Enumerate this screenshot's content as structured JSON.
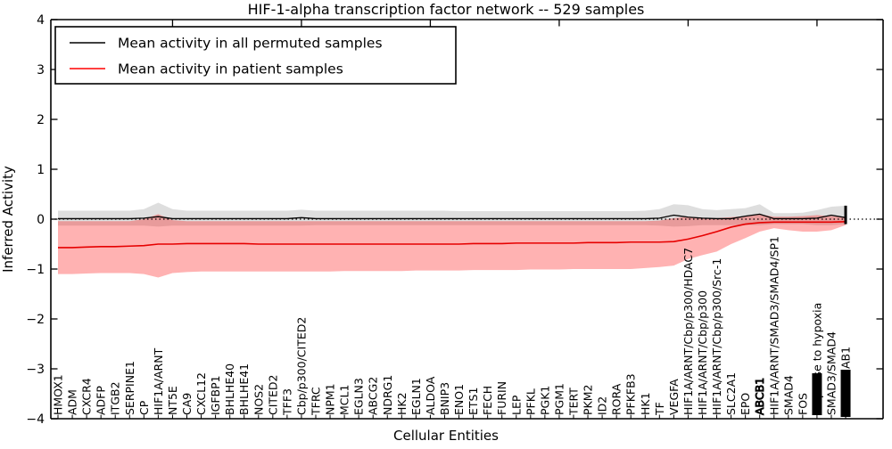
{
  "title": "HIF-1-alpha transcription factor network -- 529 samples",
  "axes": {
    "ylabel": "Inferred Activity",
    "xlabel": "Cellular Entities",
    "ylim": [
      -4,
      4
    ],
    "yticks": [
      4,
      3,
      2,
      1,
      0,
      -1,
      -2,
      -3,
      -4
    ]
  },
  "legend": {
    "items": [
      {
        "label": "Mean activity in all permuted samples",
        "color": "#000000"
      },
      {
        "label": "Mean activity in patient samples",
        "color": "#ff0000"
      }
    ]
  },
  "chart_data": {
    "type": "line",
    "title": "HIF-1-alpha transcription factor network -- 529 samples",
    "xlabel": "Cellular Entities",
    "ylabel": "Inferred Activity",
    "ylim": [
      -4,
      4
    ],
    "grid": false,
    "legend_position": "upper left",
    "zero_line": {
      "y": 0,
      "style": "dotted"
    },
    "categories": [
      "HMOX1",
      "ADM",
      "CXCR4",
      "ADFP",
      "ITGB2",
      "SERPINE1",
      "CP",
      "HIF1A/ARNT",
      "NT5E",
      "CA9",
      "CXCL12",
      "IGFBP1",
      "BHLHE40",
      "BHLHE41",
      "NOS2",
      "CITED2",
      "TFF3",
      "Cbp/p300/CITED2",
      "TFRC",
      "NPM1",
      "MCL1",
      "EGLN3",
      "ABCG2",
      "NDRG1",
      "HK2",
      "EGLN1",
      "ALDOA",
      "BNIP3",
      "ENO1",
      "ETS1",
      "FECH",
      "FURIN",
      "LEP",
      "PFKL",
      "PGK1",
      "PGM1",
      "TERT",
      "PKM2",
      "ID2",
      "RORA",
      "PFKFB3",
      "HK1",
      "TF",
      "VEGFA",
      "HIF1A/ARNT/Cbp/p300/HDAC7",
      "HIF1A/ARNT/Cbp/p300",
      "HIF1A/ARNT/Cbp/p300/Src-1",
      "SLC2A1",
      "EPO",
      "ABCB1",
      "HIF1A/ARNT/SMAD3/SMAD4/SP1",
      "SMAD4",
      "FOS",
      "response to hypoxia",
      "SMAD3/SMAD4",
      "AB1"
    ],
    "series": [
      {
        "name": "Mean activity in all permuted samples",
        "color": "#000000",
        "values": [
          0.01,
          0.01,
          0.01,
          0.01,
          0.01,
          0.01,
          0.02,
          0.05,
          0.01,
          0.01,
          0.01,
          0.01,
          0.01,
          0.01,
          0.01,
          0.01,
          0.01,
          0.03,
          0.01,
          0.01,
          0.01,
          0.01,
          0.01,
          0.01,
          0.01,
          0.01,
          0.01,
          0.01,
          0.01,
          0.01,
          0.01,
          0.01,
          0.01,
          0.01,
          0.01,
          0.01,
          0.01,
          0.01,
          0.01,
          0.01,
          0.01,
          0.01,
          0.02,
          0.08,
          0.04,
          0.02,
          0.01,
          0.01,
          0.06,
          0.1,
          0.01,
          0.01,
          0.01,
          0.02,
          0.08,
          0.03
        ],
        "band_upper": [
          0.17,
          0.17,
          0.17,
          0.17,
          0.17,
          0.17,
          0.2,
          0.33,
          0.2,
          0.17,
          0.17,
          0.17,
          0.17,
          0.17,
          0.17,
          0.17,
          0.17,
          0.19,
          0.17,
          0.17,
          0.17,
          0.17,
          0.17,
          0.17,
          0.17,
          0.17,
          0.17,
          0.17,
          0.16,
          0.16,
          0.16,
          0.16,
          0.16,
          0.16,
          0.16,
          0.16,
          0.16,
          0.16,
          0.16,
          0.16,
          0.16,
          0.17,
          0.2,
          0.3,
          0.28,
          0.2,
          0.18,
          0.2,
          0.22,
          0.3,
          0.12,
          0.12,
          0.13,
          0.18,
          0.25,
          0.27
        ],
        "band_lower": [
          -0.13,
          -0.13,
          -0.13,
          -0.13,
          -0.13,
          -0.13,
          -0.13,
          -0.15,
          -0.13,
          -0.13,
          -0.13,
          -0.13,
          -0.13,
          -0.13,
          -0.13,
          -0.13,
          -0.13,
          -0.13,
          -0.12,
          -0.12,
          -0.12,
          -0.12,
          -0.12,
          -0.12,
          -0.12,
          -0.12,
          -0.12,
          -0.12,
          -0.12,
          -0.12,
          -0.12,
          -0.12,
          -0.12,
          -0.12,
          -0.12,
          -0.12,
          -0.12,
          -0.12,
          -0.12,
          -0.12,
          -0.12,
          -0.12,
          -0.13,
          -0.15,
          -0.14,
          -0.12,
          -0.12,
          -0.12,
          -0.12,
          -0.12,
          -0.1,
          -0.1,
          -0.1,
          -0.12,
          -0.12,
          -0.1
        ],
        "band_fill": "rgba(0,0,0,0.13)"
      },
      {
        "name": "Mean activity in patient samples",
        "color": "#e60000",
        "values": [
          -0.57,
          -0.57,
          -0.56,
          -0.55,
          -0.55,
          -0.54,
          -0.53,
          -0.5,
          -0.5,
          -0.49,
          -0.49,
          -0.49,
          -0.49,
          -0.49,
          -0.5,
          -0.5,
          -0.5,
          -0.5,
          -0.5,
          -0.5,
          -0.5,
          -0.5,
          -0.5,
          -0.5,
          -0.5,
          -0.5,
          -0.5,
          -0.5,
          -0.5,
          -0.49,
          -0.49,
          -0.49,
          -0.48,
          -0.48,
          -0.48,
          -0.48,
          -0.48,
          -0.47,
          -0.47,
          -0.47,
          -0.46,
          -0.46,
          -0.46,
          -0.45,
          -0.4,
          -0.33,
          -0.25,
          -0.16,
          -0.1,
          -0.07,
          -0.06,
          -0.06,
          -0.06,
          -0.06,
          -0.06,
          -0.05
        ],
        "band_upper": [
          -0.04,
          -0.04,
          -0.04,
          -0.04,
          -0.04,
          -0.04,
          0.0,
          0.1,
          -0.02,
          -0.04,
          -0.04,
          -0.04,
          -0.04,
          -0.04,
          -0.04,
          -0.04,
          -0.04,
          -0.04,
          -0.04,
          -0.04,
          -0.04,
          -0.04,
          -0.04,
          -0.04,
          -0.04,
          -0.04,
          -0.04,
          -0.04,
          -0.04,
          -0.04,
          -0.04,
          -0.04,
          -0.04,
          -0.04,
          -0.04,
          -0.04,
          -0.04,
          -0.04,
          -0.04,
          -0.04,
          -0.04,
          -0.04,
          -0.03,
          0.02,
          0.05,
          0.03,
          0.02,
          0.04,
          0.06,
          0.1,
          0.05,
          0.05,
          0.06,
          0.08,
          0.06,
          0.05
        ],
        "band_lower": [
          -1.1,
          -1.1,
          -1.09,
          -1.08,
          -1.08,
          -1.08,
          -1.1,
          -1.17,
          -1.08,
          -1.06,
          -1.05,
          -1.05,
          -1.05,
          -1.05,
          -1.05,
          -1.05,
          -1.05,
          -1.05,
          -1.05,
          -1.05,
          -1.04,
          -1.04,
          -1.04,
          -1.04,
          -1.04,
          -1.03,
          -1.03,
          -1.03,
          -1.03,
          -1.02,
          -1.02,
          -1.02,
          -1.02,
          -1.01,
          -1.01,
          -1.01,
          -1.0,
          -1.0,
          -1.0,
          -1.0,
          -1.0,
          -0.98,
          -0.96,
          -0.93,
          -0.8,
          -0.72,
          -0.65,
          -0.5,
          -0.38,
          -0.25,
          -0.18,
          -0.22,
          -0.25,
          -0.25,
          -0.22,
          -0.12
        ],
        "band_fill": "rgba(255,0,0,0.30)"
      }
    ],
    "end_spike": {
      "category_index": 55,
      "from": -0.1,
      "to": 0.27
    },
    "bold_overlap_label_indices": [
      49
    ],
    "label_overlap_blobs": [
      {
        "index": 53,
        "offset_above_axis": 4,
        "height": 47
      },
      {
        "index": 55,
        "offset_above_axis": 2,
        "height": 53
      }
    ]
  }
}
